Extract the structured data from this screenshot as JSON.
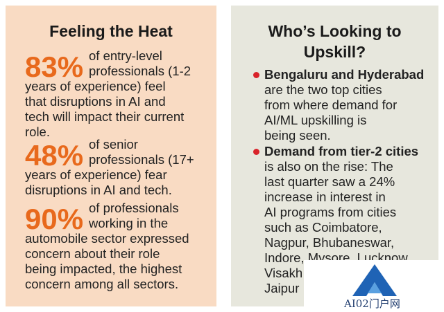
{
  "left": {
    "title": "Feeling the Heat",
    "stats": [
      {
        "value": "83%",
        "lines": [
          "of entry-level",
          "professionals (1-2",
          "years of experience) feel",
          "that disruptions in AI and",
          "tech will impact their current",
          "role."
        ]
      },
      {
        "value": "48%",
        "lines": [
          "of senior",
          "professionals (17+",
          "years of experience) fear",
          "disruptions in AI and tech."
        ]
      },
      {
        "value": "90%",
        "lines": [
          "of professionals",
          "working in the",
          "automobile sector expressed",
          "concern about their role",
          "being impacted, the highest",
          "concern among all sectors."
        ]
      }
    ]
  },
  "right": {
    "title": [
      "Who’s Looking to",
      "Upskill?"
    ],
    "bullets": [
      {
        "lines": [
          "Bengaluru and Hyderabad",
          "are the two top cities",
          "from where demand for",
          "AI/ML upskilling is",
          "being seen."
        ]
      },
      {
        "lines": [
          "Demand from tier-2 cities",
          "is also on the rise: The",
          "last quarter saw a 24%",
          "increase in interest in",
          "AI programs from cities",
          "such as Coimbatore,",
          "Nagpur, Bhubaneswar,",
          "Indore, Mysore, Lucknow,",
          "Visakh",
          "Jaipur"
        ]
      }
    ]
  },
  "watermark": "AI02门户网"
}
